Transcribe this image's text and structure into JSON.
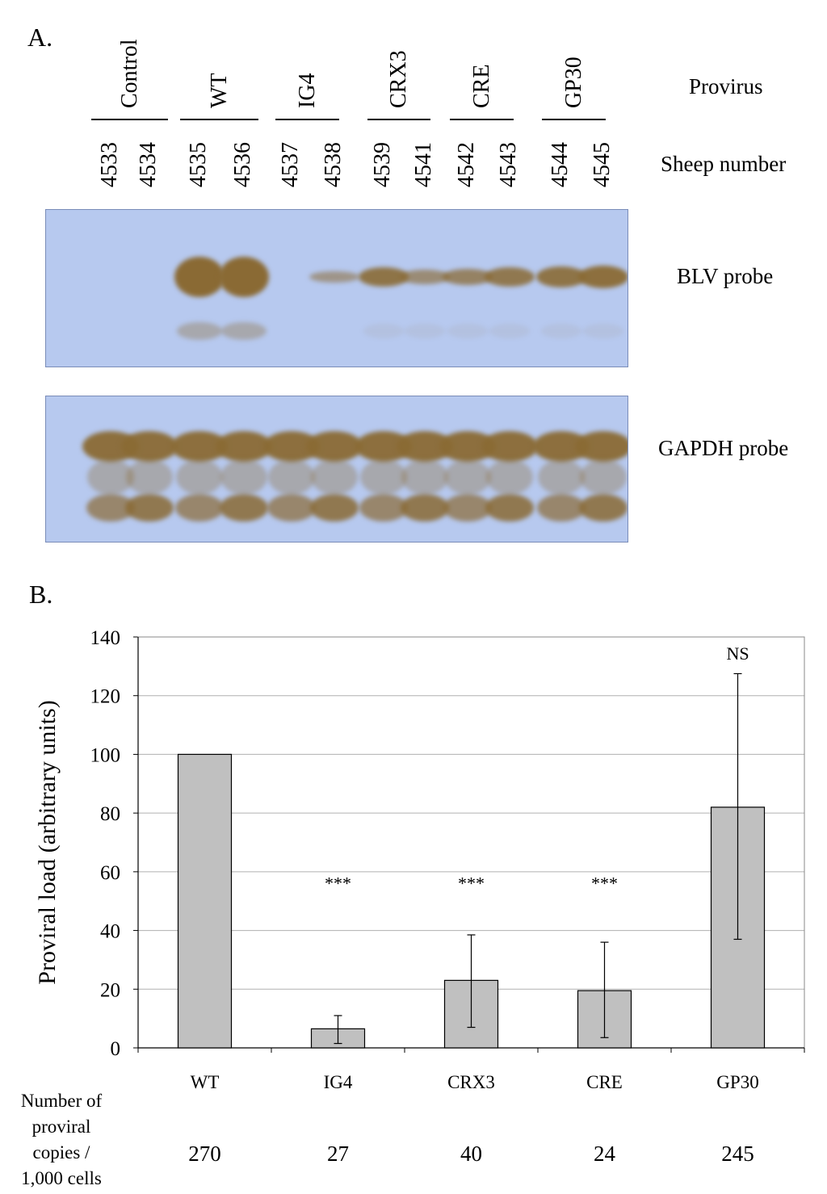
{
  "panel_a": {
    "label": "A.",
    "provirus_header": "Provirus",
    "sheep_header": "Sheep number",
    "blv_probe_label": "BLV probe",
    "gapdh_probe_label": "GAPDH probe",
    "groups": [
      "Control",
      "WT",
      "IG4",
      "CRX3",
      "CRE",
      "GP30"
    ],
    "sheep_numbers": [
      "4533",
      "4534",
      "4535",
      "4536",
      "4537",
      "4538",
      "4539",
      "4541",
      "4542",
      "4543",
      "4544",
      "4545"
    ],
    "blot_colors": {
      "membrane": "#b7c9ef",
      "band": "#8a6a34"
    }
  },
  "panel_b": {
    "label": "B.",
    "copies_label_lines": [
      "Number of",
      "proviral",
      "copies /",
      "1,000 cells"
    ],
    "copies_values": [
      "270",
      "27",
      "40",
      "24",
      "245"
    ]
  },
  "chart_data": {
    "type": "bar",
    "categories": [
      "WT",
      "IG4",
      "CRX3",
      "CRE",
      "GP30"
    ],
    "values": [
      100,
      6.5,
      23,
      19.5,
      82
    ],
    "error_low": [
      100,
      1.5,
      7,
      3.5,
      37
    ],
    "error_high": [
      100,
      11,
      38.5,
      36,
      127.5
    ],
    "significance": [
      "",
      "***",
      "***",
      "***",
      "NS"
    ],
    "ylabel": "Proviral load (arbitrary units)",
    "xlabel": "",
    "ylim": [
      0,
      140
    ],
    "yticks": [
      0,
      20,
      40,
      60,
      80,
      100,
      120,
      140
    ],
    "grid": true,
    "bar_color": "#c0c0c0",
    "gridline_color": "#b0b0b0"
  }
}
